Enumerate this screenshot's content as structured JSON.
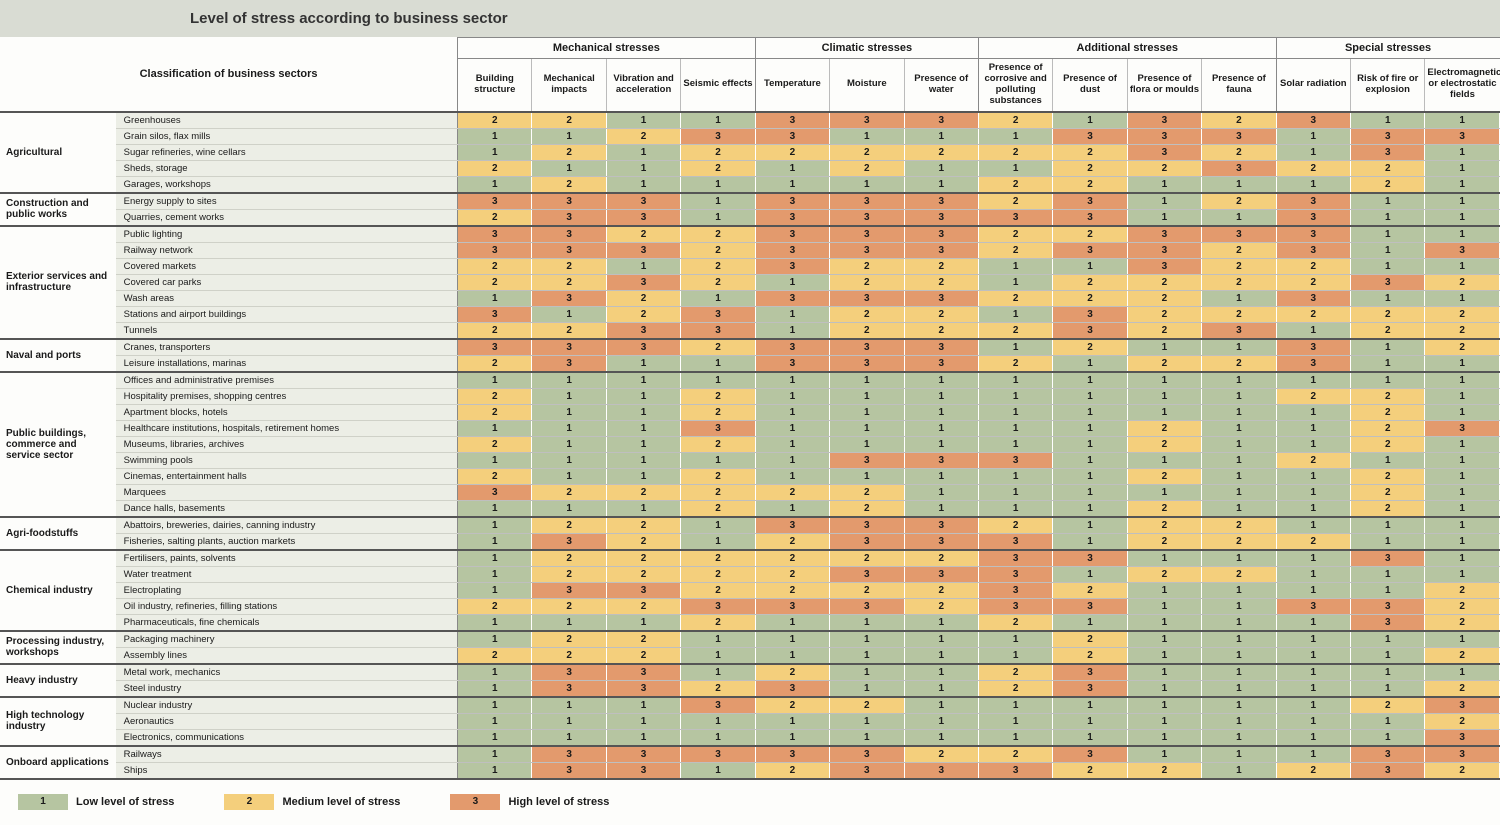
{
  "title": "Level of stress according to business sector",
  "classification_label": "Classification of business sectors",
  "colors": {
    "1": "#b6c5a1",
    "2": "#f4cf7c",
    "3": "#e39a6d",
    "row_head_bg": "#eceee6",
    "title_bg": "#d9dcd3"
  },
  "legend": [
    {
      "value": "1",
      "label": "Low level of stress"
    },
    {
      "value": "2",
      "label": "Medium level of stress"
    },
    {
      "value": "3",
      "label": "High level of stress"
    }
  ],
  "column_groups": [
    {
      "label": "Mechanical stresses",
      "cols": [
        "Building structure",
        "Mechanical impacts",
        "Vibration and acceleration",
        "Seismic effects"
      ]
    },
    {
      "label": "Climatic stresses",
      "cols": [
        "Temperature",
        "Moisture",
        "Presence of water"
      ]
    },
    {
      "label": "Additional stresses",
      "cols": [
        "Presence of corrosive and polluting substances",
        "Presence of dust",
        "Presence of flora or moulds",
        "Presence of fauna"
      ]
    },
    {
      "label": "Special stresses",
      "cols": [
        "Solar radiation",
        "Risk of fire or explosion",
        "Electromagnetic or electrostatic fields"
      ]
    }
  ],
  "sectors": [
    {
      "name": "Agricultural",
      "rows": [
        {
          "label": "Greenhouses",
          "v": [
            2,
            2,
            1,
            1,
            3,
            3,
            3,
            2,
            1,
            3,
            2,
            3,
            1,
            1
          ]
        },
        {
          "label": "Grain silos, flax mills",
          "v": [
            1,
            1,
            2,
            3,
            3,
            1,
            1,
            1,
            3,
            3,
            3,
            1,
            3,
            3
          ]
        },
        {
          "label": "Sugar refineries, wine cellars",
          "v": [
            1,
            2,
            1,
            2,
            2,
            2,
            2,
            2,
            2,
            3,
            2,
            1,
            3,
            1
          ]
        },
        {
          "label": "Sheds, storage",
          "v": [
            2,
            1,
            1,
            2,
            1,
            2,
            1,
            1,
            2,
            2,
            3,
            2,
            2,
            1
          ]
        },
        {
          "label": "Garages, workshops",
          "v": [
            1,
            2,
            1,
            1,
            1,
            1,
            1,
            2,
            2,
            1,
            1,
            1,
            2,
            1
          ]
        }
      ]
    },
    {
      "name": "Construction and public works",
      "rows": [
        {
          "label": "Energy supply to sites",
          "v": [
            3,
            3,
            3,
            1,
            3,
            3,
            3,
            2,
            3,
            1,
            2,
            3,
            1,
            1
          ]
        },
        {
          "label": "Quarries, cement works",
          "v": [
            2,
            3,
            3,
            1,
            3,
            3,
            3,
            3,
            3,
            1,
            1,
            3,
            1,
            1
          ]
        }
      ]
    },
    {
      "name": "Exterior services and infrastructure",
      "rows": [
        {
          "label": "Public lighting",
          "v": [
            3,
            3,
            2,
            2,
            3,
            3,
            3,
            2,
            2,
            3,
            3,
            3,
            1,
            1
          ]
        },
        {
          "label": "Railway network",
          "v": [
            3,
            3,
            3,
            2,
            3,
            3,
            3,
            2,
            3,
            3,
            2,
            3,
            1,
            3
          ]
        },
        {
          "label": "Covered markets",
          "v": [
            2,
            2,
            1,
            2,
            3,
            2,
            2,
            1,
            1,
            3,
            2,
            2,
            1,
            1
          ]
        },
        {
          "label": "Covered car parks",
          "v": [
            2,
            2,
            3,
            2,
            1,
            2,
            2,
            1,
            2,
            2,
            2,
            2,
            3,
            2
          ]
        },
        {
          "label": "Wash areas",
          "v": [
            1,
            3,
            2,
            1,
            3,
            3,
            3,
            2,
            2,
            2,
            1,
            3,
            1,
            1
          ]
        },
        {
          "label": "Stations and airport buildings",
          "v": [
            3,
            1,
            2,
            3,
            1,
            2,
            2,
            1,
            3,
            2,
            2,
            2,
            2,
            2
          ]
        },
        {
          "label": "Tunnels",
          "v": [
            2,
            2,
            3,
            3,
            1,
            2,
            2,
            2,
            3,
            2,
            3,
            1,
            2,
            2
          ]
        }
      ]
    },
    {
      "name": "Naval and ports",
      "rows": [
        {
          "label": "Cranes, transporters",
          "v": [
            3,
            3,
            3,
            2,
            3,
            3,
            3,
            1,
            2,
            1,
            1,
            3,
            1,
            2
          ]
        },
        {
          "label": "Leisure installations, marinas",
          "v": [
            2,
            3,
            1,
            1,
            3,
            3,
            3,
            2,
            1,
            2,
            2,
            3,
            1,
            1
          ]
        }
      ]
    },
    {
      "name": "Public buildings, commerce and service sector",
      "rows": [
        {
          "label": "Offices and administrative premises",
          "v": [
            1,
            1,
            1,
            1,
            1,
            1,
            1,
            1,
            1,
            1,
            1,
            1,
            1,
            1
          ]
        },
        {
          "label": "Hospitality premises, shopping centres",
          "v": [
            2,
            1,
            1,
            2,
            1,
            1,
            1,
            1,
            1,
            1,
            1,
            2,
            2,
            1
          ]
        },
        {
          "label": "Apartment blocks, hotels",
          "v": [
            2,
            1,
            1,
            2,
            1,
            1,
            1,
            1,
            1,
            1,
            1,
            1,
            2,
            1
          ]
        },
        {
          "label": "Healthcare institutions, hospitals, retirement homes",
          "v": [
            1,
            1,
            1,
            3,
            1,
            1,
            1,
            1,
            1,
            2,
            1,
            1,
            2,
            3
          ]
        },
        {
          "label": "Museums, libraries, archives",
          "v": [
            2,
            1,
            1,
            2,
            1,
            1,
            1,
            1,
            1,
            2,
            1,
            1,
            2,
            1
          ]
        },
        {
          "label": "Swimming pools",
          "v": [
            1,
            1,
            1,
            1,
            1,
            3,
            3,
            3,
            1,
            1,
            1,
            2,
            1,
            1
          ]
        },
        {
          "label": "Cinemas, entertainment halls",
          "v": [
            2,
            1,
            1,
            2,
            1,
            1,
            1,
            1,
            1,
            2,
            1,
            1,
            2,
            1
          ]
        },
        {
          "label": "Marquees",
          "v": [
            3,
            2,
            2,
            2,
            2,
            2,
            1,
            1,
            1,
            1,
            1,
            1,
            2,
            1
          ]
        },
        {
          "label": "Dance halls, basements",
          "v": [
            1,
            1,
            1,
            2,
            1,
            2,
            1,
            1,
            1,
            2,
            1,
            1,
            2,
            1
          ]
        }
      ]
    },
    {
      "name": "Agri-foodstuffs",
      "rows": [
        {
          "label": "Abattoirs, breweries, dairies, canning industry",
          "v": [
            1,
            2,
            2,
            1,
            3,
            3,
            3,
            2,
            1,
            2,
            2,
            1,
            1,
            1
          ]
        },
        {
          "label": "Fisheries, salting plants, auction markets",
          "v": [
            1,
            3,
            2,
            1,
            2,
            3,
            3,
            3,
            1,
            2,
            2,
            2,
            1,
            1
          ]
        }
      ]
    },
    {
      "name": "Chemical industry",
      "rows": [
        {
          "label": "Fertilisers, paints, solvents",
          "v": [
            1,
            2,
            2,
            2,
            2,
            2,
            2,
            3,
            3,
            1,
            1,
            1,
            3,
            1
          ]
        },
        {
          "label": "Water treatment",
          "v": [
            1,
            2,
            2,
            2,
            2,
            3,
            3,
            3,
            1,
            2,
            2,
            1,
            1,
            1
          ]
        },
        {
          "label": "Electroplating",
          "v": [
            1,
            3,
            3,
            2,
            2,
            2,
            2,
            3,
            2,
            1,
            1,
            1,
            1,
            2
          ]
        },
        {
          "label": "Oil industry, refineries, filling stations",
          "v": [
            2,
            2,
            2,
            3,
            3,
            3,
            2,
            3,
            3,
            1,
            1,
            3,
            3,
            2
          ]
        },
        {
          "label": "Pharmaceuticals, fine chemicals",
          "v": [
            1,
            1,
            1,
            2,
            1,
            1,
            1,
            2,
            1,
            1,
            1,
            1,
            3,
            2
          ]
        }
      ]
    },
    {
      "name": "Processing industry, workshops",
      "rows": [
        {
          "label": "Packaging machinery",
          "v": [
            1,
            2,
            2,
            1,
            1,
            1,
            1,
            1,
            2,
            1,
            1,
            1,
            1,
            1
          ]
        },
        {
          "label": "Assembly lines",
          "v": [
            2,
            2,
            2,
            1,
            1,
            1,
            1,
            1,
            2,
            1,
            1,
            1,
            1,
            2
          ]
        }
      ]
    },
    {
      "name": "Heavy industry",
      "rows": [
        {
          "label": "Metal work, mechanics",
          "v": [
            1,
            3,
            3,
            1,
            2,
            1,
            1,
            2,
            3,
            1,
            1,
            1,
            1,
            1
          ]
        },
        {
          "label": "Steel industry",
          "v": [
            1,
            3,
            3,
            2,
            3,
            1,
            1,
            2,
            3,
            1,
            1,
            1,
            1,
            2
          ]
        }
      ]
    },
    {
      "name": "High technology industry",
      "rows": [
        {
          "label": "Nuclear industry",
          "v": [
            1,
            1,
            1,
            3,
            2,
            2,
            1,
            1,
            1,
            1,
            1,
            1,
            2,
            3
          ]
        },
        {
          "label": "Aeronautics",
          "v": [
            1,
            1,
            1,
            1,
            1,
            1,
            1,
            1,
            1,
            1,
            1,
            1,
            1,
            2
          ]
        },
        {
          "label": "Electronics, communications",
          "v": [
            1,
            1,
            1,
            1,
            1,
            1,
            1,
            1,
            1,
            1,
            1,
            1,
            1,
            3
          ]
        }
      ]
    },
    {
      "name": "Onboard applications",
      "rows": [
        {
          "label": "Railways",
          "v": [
            1,
            3,
            3,
            3,
            3,
            3,
            2,
            2,
            3,
            1,
            1,
            1,
            3,
            3
          ]
        },
        {
          "label": "Ships",
          "v": [
            1,
            3,
            3,
            1,
            2,
            3,
            3,
            3,
            2,
            2,
            1,
            2,
            3,
            2
          ]
        }
      ]
    }
  ]
}
